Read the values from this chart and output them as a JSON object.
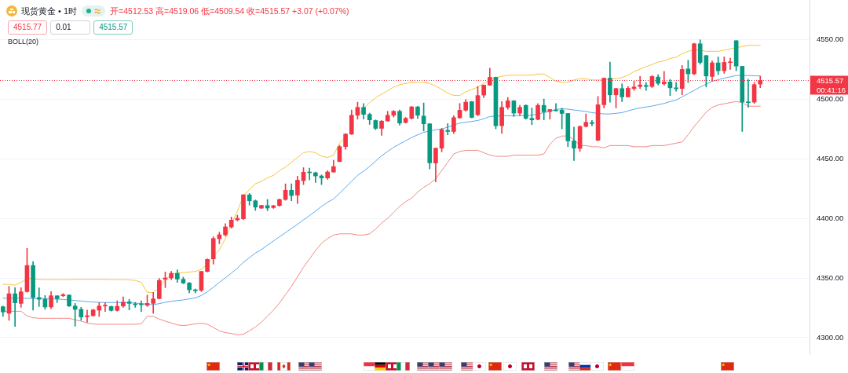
{
  "chart_data": {
    "type": "candlestick",
    "title": "现货黄金 • 1时",
    "subtitle": "开=4512.53 高=4519.06 低=4509.54 收=4515.57 +3.07 (+0.07%)",
    "annotations": [
      "4515.77",
      "0.01",
      "4515.57",
      "BOLL(20)",
      "00:41:16"
    ],
    "categories": [
      null,
      null,
      null,
      null,
      null,
      null,
      null,
      null,
      null,
      null,
      null,
      null,
      null,
      null,
      null,
      null,
      null,
      null,
      null,
      null,
      null,
      null,
      null,
      null,
      null,
      null,
      null,
      null,
      null,
      null,
      null,
      null,
      null,
      null,
      null,
      null,
      null,
      null,
      null,
      null,
      null,
      null,
      null,
      null,
      null,
      null,
      null,
      null,
      null,
      null,
      null,
      null,
      null,
      null,
      null,
      null,
      null,
      null,
      null,
      null,
      null,
      null,
      null,
      null,
      null,
      null,
      null,
      null,
      null,
      null,
      null,
      null,
      null,
      null,
      null,
      null,
      null,
      null,
      null,
      null,
      null,
      null,
      null,
      null,
      null,
      null,
      null,
      null,
      null,
      null,
      null,
      null,
      null,
      null,
      null,
      null,
      null,
      null,
      null,
      null,
      null,
      null,
      null,
      null,
      null,
      null,
      null,
      null,
      null,
      null,
      null,
      null,
      null,
      null,
      null,
      null,
      null,
      null,
      null,
      null,
      null,
      null,
      null,
      null,
      null,
      null,
      null
    ],
    "series": [
      {
        "ohlc": [
          [
            4325.9,
            4326.5,
            4317.8,
            4321.5
          ],
          [
            4320.4,
            4343.0,
            4314.5,
            4336.8
          ],
          [
            4336.8,
            4341.9,
            4309.4,
            4329.2
          ],
          [
            4328.7,
            4341.9,
            4325.4,
            4338.4
          ],
          [
            4338.6,
            4374.8,
            4338.0,
            4360.5
          ],
          [
            4360.5,
            4363.8,
            4323.0,
            4333.6
          ],
          [
            4333.6,
            4341.7,
            4326.1,
            4332.2
          ],
          [
            4332.2,
            4335.3,
            4323.7,
            4325.7
          ],
          [
            4325.7,
            4338.6,
            4324.3,
            4335.1
          ],
          [
            4335.1,
            4335.1,
            4329.4,
            4332.7
          ],
          [
            4335.1,
            4337.0,
            4334.4,
            4336.0
          ],
          [
            4335.7,
            4335.9,
            4326.1,
            4326.5
          ],
          [
            4326.5,
            4328.7,
            4309.6,
            4323.7
          ],
          [
            4323.7,
            4325.4,
            4314.5,
            4317.3
          ],
          [
            4317.5,
            4323.2,
            4312.9,
            4318.4
          ],
          [
            4318.4,
            4323.9,
            4317.8,
            4323.2
          ],
          [
            4323.0,
            4329.4,
            4317.8,
            4326.5
          ],
          [
            4326.5,
            4329.4,
            4322.0,
            4327.2
          ],
          [
            4326.1,
            4326.5,
            4322.2,
            4322.8
          ],
          [
            4322.8,
            4330.9,
            4322.2,
            4326.3
          ],
          [
            4326.5,
            4334.2,
            4325.4,
            4329.8
          ],
          [
            4330.0,
            4332.0,
            4323.2,
            4328.7
          ],
          [
            4328.3,
            4329.6,
            4325.4,
            4327.6
          ],
          [
            4328.3,
            4330.9,
            4322.0,
            4327.6
          ],
          [
            4327.2,
            4335.7,
            4326.1,
            4328.7
          ],
          [
            4328.7,
            4337.9,
            4320.4,
            4332.5
          ],
          [
            4332.7,
            4349.6,
            4332.5,
            4348.0
          ],
          [
            4348.9,
            4355.0,
            4341.9,
            4350.0
          ],
          [
            4350.0,
            4355.5,
            4348.5,
            4353.9
          ],
          [
            4353.9,
            4356.8,
            4346.3,
            4349.1
          ],
          [
            4348.9,
            4350.7,
            4345.2,
            4345.8
          ],
          [
            4345.8,
            4346.3,
            4337.5,
            4340.1
          ],
          [
            4340.1,
            4340.8,
            4337.5,
            4339.3
          ],
          [
            4339.7,
            4355.5,
            4338.6,
            4355.5
          ],
          [
            4355.5,
            4366.0,
            4355.0,
            4365.6
          ],
          [
            4366.0,
            4384.6,
            4361.6,
            4383.1
          ],
          [
            4382.9,
            4388.4,
            4378.7,
            4386.2
          ],
          [
            4386.2,
            4395.6,
            4385.1,
            4392.8
          ],
          [
            4392.8,
            4401.1,
            4391.7,
            4398.5
          ],
          [
            4398.7,
            4402.6,
            4397.8,
            4400.0
          ],
          [
            4399.6,
            4419.9,
            4398.9,
            4419.7
          ],
          [
            4419.7,
            4420.8,
            4411.0,
            4414.7
          ],
          [
            4414.7,
            4415.4,
            4406.6,
            4409.4
          ],
          [
            4408.5,
            4411.0,
            4408.3,
            4410.8
          ],
          [
            4410.7,
            4415.8,
            4406.4,
            4408.6
          ],
          [
            4409.0,
            4411.0,
            4408.3,
            4410.5
          ],
          [
            4410.7,
            4416.2,
            4410.1,
            4415.8
          ],
          [
            4415.8,
            4428.9,
            4415.1,
            4423.5
          ],
          [
            4423.5,
            4428.9,
            4414.7,
            4419.1
          ],
          [
            4419.5,
            4435.3,
            4412.5,
            4432.0
          ],
          [
            4431.6,
            4442.5,
            4428.3,
            4438.6
          ],
          [
            4438.8,
            4442.1,
            4432.2,
            4438.2
          ],
          [
            4438.2,
            4438.8,
            4430.0,
            4435.5
          ],
          [
            4435.5,
            4436.4,
            4428.3,
            4433.8
          ],
          [
            4433.8,
            4439.9,
            4432.7,
            4438.8
          ],
          [
            4438.8,
            4448.7,
            4438.5,
            4443.4
          ],
          [
            4447.6,
            4461.2,
            4447.4,
            4460.1
          ],
          [
            4460.1,
            4471.1,
            4457.9,
            4470.6
          ],
          [
            4470.6,
            4490.8,
            4470.2,
            4486.4
          ],
          [
            4486.4,
            4497.4,
            4483.1,
            4493.0
          ],
          [
            4493.0,
            4496.3,
            4483.1,
            4487.1
          ],
          [
            4487.1,
            4488.2,
            4478.7,
            4482.5
          ],
          [
            4482.0,
            4482.5,
            4474.3,
            4475.4
          ],
          [
            4475.4,
            4482.0,
            4469.5,
            4481.4
          ],
          [
            4481.6,
            4489.7,
            4481.5,
            4486.4
          ],
          [
            4486.4,
            4490.4,
            4484.9,
            4489.7
          ],
          [
            4489.7,
            4490.8,
            4478.1,
            4479.8
          ],
          [
            4480.3,
            4484.6,
            4479.8,
            4483.8
          ],
          [
            4483.8,
            4493.9,
            4483.1,
            4493.4
          ],
          [
            4493.4,
            4493.9,
            4483.6,
            4486.4
          ],
          [
            4485.7,
            4496.7,
            4473.2,
            4479.2
          ],
          [
            4479.2,
            4479.6,
            4441.4,
            4446.5
          ],
          [
            4446.3,
            4458.8,
            4430.5,
            4458.8
          ],
          [
            4458.8,
            4475.4,
            4455.7,
            4474.3
          ],
          [
            4473.7,
            4479.4,
            4470.0,
            4472.8
          ],
          [
            4472.8,
            4486.0,
            4471.0,
            4484.4
          ],
          [
            4484.2,
            4496.3,
            4483.8,
            4490.6
          ],
          [
            4490.6,
            4499.6,
            4489.7,
            4497.4
          ],
          [
            4497.8,
            4498.0,
            4484.2,
            4484.6
          ],
          [
            4486.8,
            4510.5,
            4486.0,
            4502.9
          ],
          [
            4503.3,
            4511.8,
            4501.1,
            4511.6
          ],
          [
            4511.6,
            4525.9,
            4511.4,
            4518.2
          ],
          [
            4518.2,
            4518.4,
            4475.0,
            4477.6
          ],
          [
            4477.6,
            4497.8,
            4471.1,
            4493.0
          ],
          [
            4493.0,
            4501.3,
            4491.4,
            4498.5
          ],
          [
            4498.5,
            4498.7,
            4485.3,
            4488.2
          ],
          [
            4488.2,
            4494.7,
            4486.0,
            4493.0
          ],
          [
            4494.7,
            4495.2,
            4483.1,
            4483.8
          ],
          [
            4483.8,
            4492.5,
            4478.5,
            4482.5
          ],
          [
            4482.9,
            4496.3,
            4482.5,
            4494.7
          ],
          [
            4494.7,
            4500.0,
            4482.5,
            4489.3
          ],
          [
            4489.5,
            4491.4,
            4483.1,
            4491.2
          ],
          [
            4490.8,
            4496.3,
            4489.7,
            4490.1
          ],
          [
            4490.8,
            4492.3,
            4475.0,
            4487.9
          ],
          [
            4487.9,
            4488.0,
            4460.1,
            4464.9
          ],
          [
            4464.9,
            4476.5,
            4448.5,
            4458.8
          ],
          [
            4458.6,
            4477.6,
            4456.1,
            4477.0
          ],
          [
            4477.0,
            4487.5,
            4476.5,
            4480.5
          ],
          [
            4480.3,
            4482.0,
            4477.6,
            4479.4
          ],
          [
            4465.4,
            4502.2,
            4465.0,
            4495.2
          ],
          [
            4495.2,
            4517.7,
            4492.5,
            4517.5
          ],
          [
            4517.5,
            4530.9,
            4497.4,
            4503.5
          ],
          [
            4503.5,
            4509.0,
            4492.5,
            4508.8
          ],
          [
            4508.8,
            4512.7,
            4497.8,
            4501.8
          ],
          [
            4501.8,
            4510.5,
            4501.6,
            4509.0
          ],
          [
            4508.8,
            4514.9,
            4507.2,
            4510.1
          ],
          [
            4510.5,
            4518.9,
            4508.8,
            4511.8
          ],
          [
            4511.4,
            4513.8,
            4507.2,
            4510.5
          ],
          [
            4510.5,
            4519.7,
            4509.6,
            4518.9
          ],
          [
            4518.4,
            4520.4,
            4511.8,
            4513.2
          ],
          [
            4512.7,
            4523.2,
            4511.6,
            4514.3
          ],
          [
            4514.3,
            4516.4,
            4502.9,
            4509.4
          ],
          [
            4509.4,
            4513.8,
            4506.6,
            4508.6
          ],
          [
            4508.8,
            4528.1,
            4503.5,
            4524.8
          ],
          [
            4525.2,
            4532.5,
            4513.8,
            4521.1
          ],
          [
            4521.1,
            4546.7,
            4520.4,
            4546.3
          ],
          [
            4546.3,
            4549.6,
            4529.2,
            4530.7
          ],
          [
            4536.4,
            4536.6,
            4510.1,
            4519.3
          ],
          [
            4518.9,
            4532.0,
            4514.9,
            4530.3
          ],
          [
            4530.3,
            4535.3,
            4520.4,
            4523.7
          ],
          [
            4523.7,
            4535.3,
            4521.5,
            4530.7
          ],
          [
            4530.5,
            4534.2,
            4524.8,
            4531.1
          ],
          [
            4548.9,
            4549.0,
            4523.7,
            4527.6
          ],
          [
            4527.4,
            4527.5,
            4472.8,
            4497.4
          ],
          [
            4497.4,
            4516.4,
            4493.0,
            4497.0
          ],
          [
            4497.4,
            4513.8,
            4496.3,
            4512.1
          ],
          [
            4512.53,
            4519.06,
            4509.54,
            4515.57
          ]
        ],
        "colors": [
          "#089981",
          "#f23645",
          "#089981",
          "#f23645",
          "#f23645",
          "#089981",
          "#089981",
          "#089981",
          "#f23645",
          "#089981",
          "#f23645",
          "#089981",
          "#089981",
          "#089981",
          "#f23645",
          "#f23645",
          "#f23645",
          "#f23645",
          "#089981",
          "#f23645",
          "#f23645",
          "#089981",
          "#089981",
          "#089981",
          "#f23645",
          "#f23645",
          "#f23645",
          "#f23645",
          "#f23645",
          "#089981",
          "#089981",
          "#089981",
          "#089981",
          "#f23645",
          "#f23645",
          "#f23645",
          "#f23645",
          "#f23645",
          "#f23645",
          "#f23645",
          "#f23645",
          "#089981",
          "#089981",
          "#f23645",
          "#089981",
          "#f23645",
          "#f23645",
          "#f23645",
          "#089981",
          "#f23645",
          "#f23645",
          "#089981",
          "#089981",
          "#089981",
          "#f23645",
          "#f23645",
          "#f23645",
          "#f23645",
          "#f23645",
          "#f23645",
          "#089981",
          "#089981",
          "#089981",
          "#f23645",
          "#f23645",
          "#f23645",
          "#089981",
          "#f23645",
          "#f23645",
          "#089981",
          "#089981",
          "#089981",
          "#f23645",
          "#f23645",
          "#089981",
          "#f23645",
          "#f23645",
          "#f23645",
          "#089981",
          "#f23645",
          "#f23645",
          "#f23645",
          "#089981",
          "#f23645",
          "#f23645",
          "#089981",
          "#f23645",
          "#089981",
          "#089981",
          "#f23645",
          "#089981",
          "#f23645",
          "#089981",
          "#089981",
          "#089981",
          "#089981",
          "#f23645",
          "#f23645",
          "#089981",
          "#f23645",
          "#f23645",
          "#089981",
          "#f23645",
          "#089981",
          "#f23645",
          "#f23645",
          "#f23645",
          "#089981",
          "#f23645",
          "#089981",
          "#f23645",
          "#089981",
          "#089981",
          "#f23645",
          "#089981",
          "#f23645",
          "#089981",
          "#089981",
          "#f23645",
          "#089981",
          "#f23645",
          "#f23645",
          "#089981",
          "#089981",
          "#089981",
          "#f23645",
          "#f23645"
        ]
      },
      {
        "type": "line",
        "color": "#f5c542",
        "values": [
          4344.7,
          4344.7,
          4344.0,
          4346.3,
          4349.6,
          4349.3,
          4348.9,
          4348.7,
          4348.7,
          4348.7,
          4348.7,
          4348.7,
          4348.9,
          4348.9,
          4348.9,
          4348.9,
          4348.9,
          4348.9,
          4348.7,
          4348.7,
          4348.7,
          4348.5,
          4348.0,
          4346.3,
          4337.9,
          4337.9,
          4341.9,
          4348.5,
          4352.9,
          4354.0,
          4354.6,
          4355.0,
          4355.5,
          4357.2,
          4361.6,
          4367.8,
          4373.7,
          4383,
          4395,
          4406,
          4419,
          4424,
          4429,
          4431,
          4434,
          4436,
          4440,
          4443,
          4447,
          4451,
          4455,
          4456,
          4455,
          4452,
          4451,
          4453,
          4463,
          4468,
          null,
          4486,
          4492,
          4497,
          4501,
          4504,
          4507,
          4510,
          4512,
          4513,
          4514,
          4514,
          4514,
          4513,
          4511,
          4508,
          4505,
          4503,
          4503,
          4506,
          4508,
          4510,
          4513,
          4516,
          4518,
          4519,
          4520,
          4520,
          4520,
          4520,
          4520,
          4521,
          4521,
          4518,
          4515,
          4514,
          4514,
          4516,
          4517,
          4517,
          4516,
          4516,
          4516,
          4517,
          4517,
          4518,
          4520,
          4523,
          4525,
          4527,
          4529,
          4531,
          4532,
          4534,
          4535,
          4538,
          4540,
          4541,
          4541,
          4540,
          4540,
          4540,
          4541,
          4542,
          4543,
          4544,
          4545,
          4545,
          4545
        ]
      },
      {
        "type": "line",
        "color": "#5ea8ea",
        "values": [
          4333.1,
          4333.1,
          4333.1,
          4333.1,
          4332.9,
          4332.7,
          4332.7,
          4332.7,
          4332.5,
          4332.3,
          4332.0,
          4331.6,
          4331.1,
          4330.7,
          4330.2,
          4329.8,
          4329.6,
          4329.4,
          4329.4,
          4329.4,
          4329.4,
          4329.2,
          4329.0,
          4328.5,
          4328.0,
          4327.6,
          4328.5,
          4329.6,
          4330.5,
          4331.1,
          4331.6,
          4332.5,
          4333.3,
          4335.3,
          4338.5,
          4342.2,
          4346.3,
          4350.1,
          4354.1,
          4358.2,
          4363.2,
          4367.0,
          4370.9,
          4373.8,
          4377.5,
          4381,
          4384.5,
          4388,
          4391.5,
          4395,
          4398.7,
          4402.3,
          4406,
          4410,
          4413.5,
          4416.2,
          4421,
          4426,
          4431,
          4436,
          4439.5,
          4443.5,
          4448,
          4452.5,
          4456,
          4459.5,
          4462.3,
          4465,
          4467.8,
          4470,
          4472.1,
          4473.2,
          4474.3,
          4474.8,
          4476.5,
          4478.3,
          4479.8,
          4480.5,
          4481.2,
          4482,
          4483.5,
          4485.3,
          4485.7,
          4486,
          4486,
          4486,
          4486.2,
          4486.3,
          4486.4,
          4487.5,
          4488.6,
          4489.8,
          4491.2,
          4491.9,
          4491.5,
          4490.8,
          4490.2,
          4489.5,
          4488.6,
          4488,
          4487.5,
          4487.5,
          4488,
          4488.6,
          4490.1,
          4491.4,
          4492.5,
          4493.3,
          4494.1,
          4495.2,
          4496.3,
          4497.8,
          4499.1,
          4501.8,
          4504.5,
          4507.2,
          4510.1,
          4512.5,
          4514.9,
          4516.2,
          4517.5,
          4518.6,
          4519.7,
          4519.7,
          4519.7,
          4519.5,
          4519.3
        ]
      },
      {
        "type": "line",
        "color": "#f08a84",
        "values": [
          4322.1,
          4322.1,
          4322.1,
          4322.1,
          4318.2,
          4316.7,
          4316.2,
          4316.2,
          4316.2,
          4316.2,
          4316.2,
          4316.2,
          4314.9,
          4313.8,
          4312.3,
          4311.4,
          4311.2,
          4311.2,
          4311.2,
          4311.2,
          4311.2,
          4311.2,
          4311.2,
          4311.6,
          4317.8,
          4317.8,
          4315.6,
          4313.8,
          4312.3,
          4310.7,
          4310.1,
          4310.7,
          4311.6,
          4312.1,
          4311.2,
          4308.6,
          4305.7,
          4304.2,
          4303.5,
          4302.4,
          4302.9,
          4305.7,
          4309,
          4312.9,
          4318,
          4323,
          4329,
          4336,
          4343,
          4351,
          4359,
          4366,
          4373,
          4379,
          4383,
          4386,
          4387,
          4387,
          4387,
          4386,
          4386,
          4387,
          4391,
          4396,
          4400,
          4405,
          4410,
          4414,
          4417,
          4422,
          4426,
          4429,
          4433,
          4440,
          4447,
          4454,
          4456,
          4457,
          4457,
          4457,
          4455,
          4453,
          4452,
          4452,
          4452,
          4453,
          4453,
          4453,
          4453,
          4453,
          4454,
          4462,
          4467,
          4469,
          4469,
          4466,
          4461,
          4461,
          4460,
          4460,
          4459,
          4461,
          4461,
          4461,
          4461,
          4460,
          4460,
          4460,
          4461,
          4461,
          4461,
          4462,
          4463,
          4464,
          4470,
          4477,
          4483,
          4489,
          4493,
          4495,
          4496,
          4497,
          4498,
          4497,
          4494,
          4494,
          4494
        ]
      }
    ],
    "ylim": [
      4285.5,
      4583
    ],
    "yticks": [
      {
        "value": 4300,
        "label": "4300.00"
      },
      {
        "value": 4350,
        "label": "4350.00"
      },
      {
        "value": 4400,
        "label": "4400.00"
      },
      {
        "value": 4450,
        "label": "4450.00"
      },
      {
        "value": 4500,
        "label": "4500.00"
      },
      {
        "value": 4550,
        "label": "4550.00"
      }
    ],
    "ref_lines": [
      {
        "axis": "y",
        "value": 4515.57,
        "label": "4515.57",
        "color": "#f23645",
        "line_style": "dotted"
      }
    ],
    "grid": "y",
    "legend": false,
    "tick_labels": "y",
    "marker": "none",
    "line_style": "solid"
  }
}
